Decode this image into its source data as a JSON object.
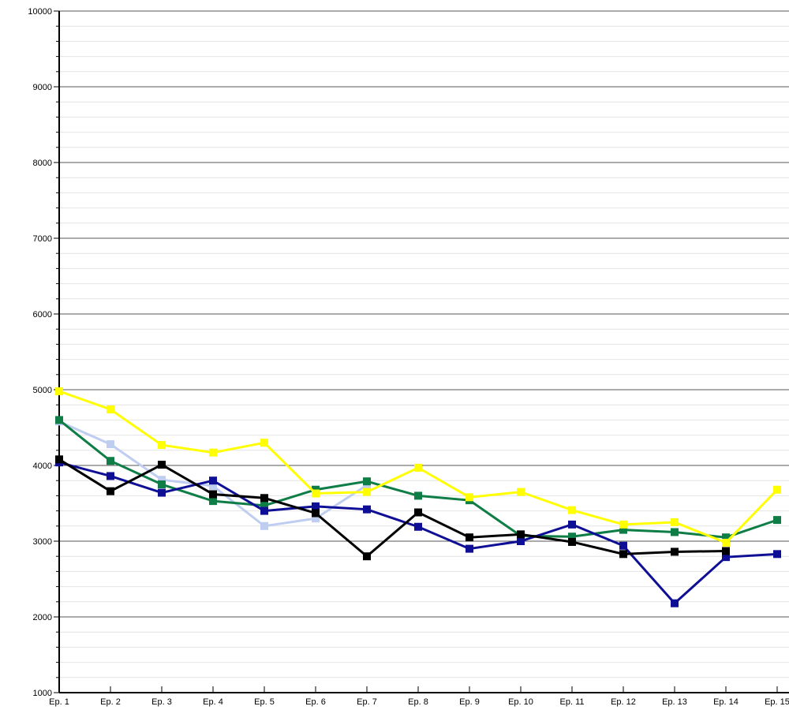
{
  "chart_data": {
    "type": "line",
    "title": "",
    "xlabel": "",
    "ylabel": "",
    "legend_position": "none",
    "grid": "on",
    "categories": [
      "Ep. 1",
      "Ep. 2",
      "Ep. 3",
      "Ep. 4",
      "Ep. 5",
      "Ep. 6",
      "Ep. 7",
      "Ep. 8",
      "Ep. 9",
      "Ep. 10",
      "Ep. 11",
      "Ep. 12",
      "Ep. 13",
      "Ep. 14",
      "Ep. 15"
    ],
    "y_axis": {
      "min": 1000,
      "max": 10000,
      "major_step": 1000,
      "minor_step": 200
    },
    "colors": {
      "background": "#ffffff",
      "minor_grid": "#e4e4e4",
      "major_grid": "#565656",
      "axis": "#000000",
      "label_text": "#000000"
    },
    "series": [
      {
        "name": "light-blue",
        "color": "#bfcdf0",
        "values": [
          4580,
          4280,
          3810,
          3730,
          3200,
          3300,
          3740,
          null,
          null,
          null,
          null,
          null,
          null,
          null,
          null
        ]
      },
      {
        "name": "green",
        "color": "#0e7d46",
        "values": [
          4600,
          4060,
          3750,
          3530,
          3470,
          3680,
          3790,
          3600,
          3540,
          3070,
          3060,
          3150,
          3120,
          3050,
          3280
        ]
      },
      {
        "name": "navy",
        "color": "#0f0f96",
        "values": [
          4040,
          3860,
          3640,
          3800,
          3400,
          3460,
          3420,
          3190,
          2900,
          3000,
          3220,
          2940,
          2180,
          2790,
          2830
        ]
      },
      {
        "name": "black",
        "color": "#000000",
        "values": [
          4080,
          3660,
          4010,
          3620,
          3570,
          3370,
          2800,
          3380,
          3050,
          3090,
          2990,
          2830,
          2860,
          2870,
          null
        ]
      },
      {
        "name": "yellow",
        "color": "#ffff00",
        "values": [
          4980,
          4740,
          4270,
          4170,
          4300,
          3630,
          3650,
          3970,
          3580,
          3650,
          3410,
          3220,
          3250,
          2980,
          3680
        ]
      }
    ]
  }
}
